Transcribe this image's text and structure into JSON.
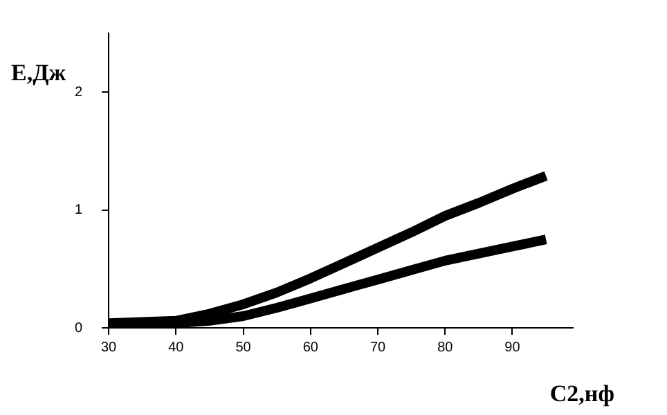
{
  "chart_data": {
    "type": "line",
    "xlabel": "C2,нф",
    "ylabel": "Е,Дж",
    "xlim": [
      30,
      99
    ],
    "xticks": [
      30,
      40,
      50,
      60,
      70,
      80,
      90
    ],
    "ylim": [
      0,
      2.5
    ],
    "yticks": [
      0,
      1,
      2
    ],
    "grid": false,
    "legend": false,
    "marker": "none",
    "line_style": "solid",
    "series": [
      {
        "color": "#000000",
        "x": [
          30,
          35,
          40,
          45,
          50,
          55,
          60,
          65,
          70,
          75,
          80,
          85,
          90,
          95
        ],
        "values": [
          0.04,
          0.05,
          0.06,
          0.12,
          0.2,
          0.3,
          0.42,
          0.55,
          0.68,
          0.81,
          0.95,
          1.06,
          1.18,
          1.29
        ]
      },
      {
        "color": "#000000",
        "x": [
          30,
          35,
          40,
          45,
          50,
          55,
          60,
          65,
          70,
          75,
          80,
          85,
          90,
          95
        ],
        "values": [
          0.03,
          0.03,
          0.04,
          0.06,
          0.1,
          0.17,
          0.25,
          0.33,
          0.41,
          0.49,
          0.57,
          0.63,
          0.69,
          0.75
        ]
      }
    ]
  }
}
